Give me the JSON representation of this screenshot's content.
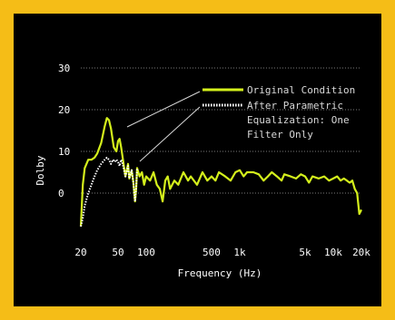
{
  "chart_data": {
    "type": "line",
    "title": "",
    "xlabel": "Frequency (Hz)",
    "ylabel": "Dolby",
    "x_scale": "log",
    "xlim": [
      20,
      20000
    ],
    "ylim": [
      -10,
      30
    ],
    "x_ticks": [
      {
        "value": 20,
        "label": "20"
      },
      {
        "value": 50,
        "label": "50"
      },
      {
        "value": 100,
        "label": "100"
      },
      {
        "value": 500,
        "label": "500"
      },
      {
        "value": 1000,
        "label": "1k"
      },
      {
        "value": 5000,
        "label": "5k"
      },
      {
        "value": 10000,
        "label": "10k"
      },
      {
        "value": 20000,
        "label": "20k"
      }
    ],
    "y_ticks": [
      {
        "value": 0,
        "label": "0"
      },
      {
        "value": 10,
        "label": "10"
      },
      {
        "value": 20,
        "label": "20"
      },
      {
        "value": 30,
        "label": "30"
      }
    ],
    "grid": "horizontal dotted",
    "legend_position": "top-right",
    "series": [
      {
        "name": "Original Condition",
        "color": "#d4f01c",
        "style": "solid",
        "x": [
          20,
          21,
          22,
          24,
          26,
          28,
          30,
          33,
          36,
          38,
          40,
          42,
          45,
          48,
          50,
          52,
          54,
          56,
          60,
          64,
          66,
          70,
          73,
          76,
          78,
          80,
          85,
          90,
          95,
          100,
          110,
          120,
          130,
          140,
          150,
          160,
          170,
          180,
          200,
          220,
          250,
          280,
          300,
          350,
          400,
          450,
          500,
          550,
          600,
          700,
          800,
          900,
          1000,
          1100,
          1200,
          1400,
          1600,
          1800,
          2000,
          2200,
          2500,
          2800,
          3000,
          3500,
          4000,
          4500,
          5000,
          5500,
          6000,
          7000,
          8000,
          9000,
          10000,
          11000,
          12000,
          13000,
          14000,
          15000,
          16000,
          17000,
          18000,
          19000,
          20000
        ],
        "values": [
          -8,
          2,
          6,
          8,
          8,
          8.5,
          9.5,
          12,
          16,
          18,
          17.5,
          15.5,
          11,
          10,
          12.5,
          13,
          11,
          8.5,
          4,
          7,
          3.5,
          5.5,
          2.5,
          -2,
          1,
          6,
          4,
          5,
          2,
          4,
          3,
          5,
          2,
          1,
          -2,
          3,
          4,
          1,
          3,
          2,
          5,
          3,
          4,
          2,
          5,
          3,
          4,
          3,
          5,
          4,
          3,
          5,
          5.5,
          4,
          5,
          5,
          4.5,
          3,
          4,
          5,
          4,
          3,
          4.5,
          4,
          3.5,
          4.5,
          4,
          2.5,
          4,
          3.5,
          4,
          3,
          3.5,
          4,
          3,
          3.5,
          3,
          2.5,
          3,
          1,
          0,
          -5,
          -4
        ]
      },
      {
        "name": "After Parametric Equalization: One Filter Only",
        "color": "#ffffff",
        "style": "dotted",
        "x": [
          20,
          21,
          22,
          24,
          26,
          28,
          30,
          33,
          36,
          38,
          40,
          42,
          44,
          46,
          48,
          50,
          52,
          54,
          56,
          60,
          64,
          66,
          70,
          73,
          76,
          78,
          80
        ],
        "values": [
          -8,
          -6,
          -3,
          0,
          2,
          4,
          5.5,
          7,
          8,
          8.5,
          8,
          7,
          8,
          7.5,
          8,
          7.5,
          6.5,
          8,
          7,
          4,
          6.5,
          3.5,
          5.5,
          2.5,
          -2,
          1,
          6
        ]
      }
    ],
    "legend": [
      {
        "label_lines": [
          "Original Condition"
        ]
      },
      {
        "label_lines": [
          "After Parametric",
          "Equalization: One",
          "Filter Only"
        ]
      }
    ]
  }
}
